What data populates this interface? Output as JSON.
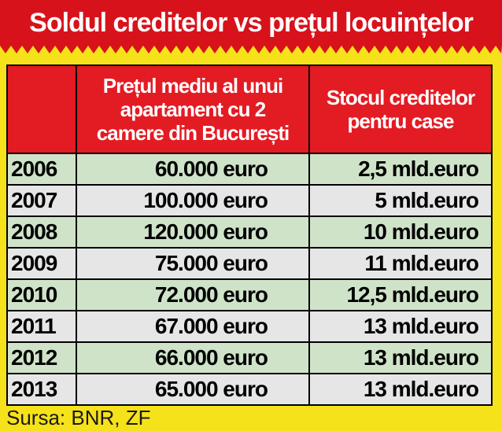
{
  "title": "Soldul creditelor vs prețul locuințelor",
  "header": {
    "col_year": "",
    "col_price_lines": [
      "Prețul mediu al unui",
      "apartament cu 2",
      "camere din București"
    ],
    "col_stock_lines": [
      "Stocul creditelor",
      "pentru case"
    ]
  },
  "rows": [
    {
      "year": "2006",
      "price": "60.000 euro",
      "stock": "2,5 mld.euro"
    },
    {
      "year": "2007",
      "price": "100.000 euro",
      "stock": "5 mld.euro"
    },
    {
      "year": "2008",
      "price": "120.000 euro",
      "stock": "10 mld.euro"
    },
    {
      "year": "2009",
      "price": "75.000 euro",
      "stock": "11 mld.euro"
    },
    {
      "year": "2010",
      "price": "72.000 euro",
      "stock": "12,5 mld.euro"
    },
    {
      "year": "2011",
      "price": "67.000 euro",
      "stock": "13 mld.euro"
    },
    {
      "year": "2012",
      "price": "66.000 euro",
      "stock": "13 mld.euro"
    },
    {
      "year": "2013",
      "price": "65.000 euro",
      "stock": "13 mld.euro"
    }
  ],
  "source": "Sursa: BNR, ZF",
  "colors": {
    "banner": "#d8121b",
    "background": "#f6e21a",
    "header": "#e31b23",
    "row_green": "#cfe3c9",
    "row_grey": "#e6e6e6"
  }
}
